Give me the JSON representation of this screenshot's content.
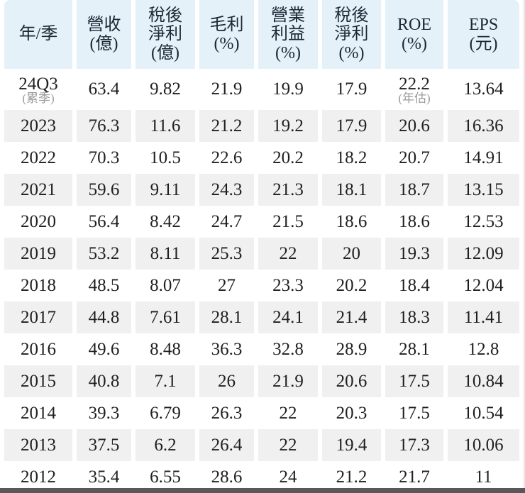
{
  "colors": {
    "header_bg": "#e4f1f9",
    "stripe_bg": "#f0f0f0",
    "text_main": "#1f1f1f",
    "text_header": "#1b2733",
    "text_note": "#9a9a9a",
    "bottom_bar": "#58585a"
  },
  "table": {
    "columns": [
      {
        "id": "year",
        "lines": [
          "年/季"
        ]
      },
      {
        "id": "revenue",
        "lines": [
          "營收",
          "(億)"
        ]
      },
      {
        "id": "net_income",
        "lines": [
          "稅後",
          "淨利",
          "(億)"
        ]
      },
      {
        "id": "gross_margin",
        "lines": [
          "毛利",
          "(%)"
        ]
      },
      {
        "id": "op_margin",
        "lines": [
          "營業",
          "利益",
          "(%)"
        ]
      },
      {
        "id": "net_margin",
        "lines": [
          "稅後",
          "淨利",
          "(%)"
        ]
      },
      {
        "id": "roe",
        "lines": [
          "ROE",
          "(%)"
        ]
      },
      {
        "id": "eps",
        "lines": [
          "EPS",
          "(元)"
        ]
      }
    ],
    "rows": [
      {
        "year": "24Q3",
        "year_note": "(累季)",
        "revenue": "63.4",
        "net_income": "9.82",
        "gross_margin": "21.9",
        "op_margin": "19.9",
        "net_margin": "17.9",
        "roe": "22.2",
        "roe_note": "(年估)",
        "eps": "13.64"
      },
      {
        "year": "2023",
        "revenue": "76.3",
        "net_income": "11.6",
        "gross_margin": "21.2",
        "op_margin": "19.2",
        "net_margin": "17.9",
        "roe": "20.6",
        "eps": "16.36"
      },
      {
        "year": "2022",
        "revenue": "70.3",
        "net_income": "10.5",
        "gross_margin": "22.6",
        "op_margin": "20.2",
        "net_margin": "18.2",
        "roe": "20.7",
        "eps": "14.91"
      },
      {
        "year": "2021",
        "revenue": "59.6",
        "net_income": "9.11",
        "gross_margin": "24.3",
        "op_margin": "21.3",
        "net_margin": "18.1",
        "roe": "18.7",
        "eps": "13.15"
      },
      {
        "year": "2020",
        "revenue": "56.4",
        "net_income": "8.42",
        "gross_margin": "24.7",
        "op_margin": "21.5",
        "net_margin": "18.6",
        "roe": "18.6",
        "eps": "12.53"
      },
      {
        "year": "2019",
        "revenue": "53.2",
        "net_income": "8.11",
        "gross_margin": "25.3",
        "op_margin": "22",
        "net_margin": "20",
        "roe": "19.3",
        "eps": "12.09"
      },
      {
        "year": "2018",
        "revenue": "48.5",
        "net_income": "8.07",
        "gross_margin": "27",
        "op_margin": "23.3",
        "net_margin": "20.2",
        "roe": "18.4",
        "eps": "12.04"
      },
      {
        "year": "2017",
        "revenue": "44.8",
        "net_income": "7.61",
        "gross_margin": "28.1",
        "op_margin": "24.1",
        "net_margin": "21.4",
        "roe": "18.3",
        "eps": "11.41"
      },
      {
        "year": "2016",
        "revenue": "49.6",
        "net_income": "8.48",
        "gross_margin": "36.3",
        "op_margin": "32.8",
        "net_margin": "28.9",
        "roe": "28.1",
        "eps": "12.8"
      },
      {
        "year": "2015",
        "revenue": "40.8",
        "net_income": "7.1",
        "gross_margin": "26",
        "op_margin": "21.9",
        "net_margin": "20.6",
        "roe": "17.5",
        "eps": "10.84"
      },
      {
        "year": "2014",
        "revenue": "39.3",
        "net_income": "6.79",
        "gross_margin": "26.3",
        "op_margin": "22",
        "net_margin": "20.3",
        "roe": "17.5",
        "eps": "10.54"
      },
      {
        "year": "2013",
        "revenue": "37.5",
        "net_income": "6.2",
        "gross_margin": "26.4",
        "op_margin": "22",
        "net_margin": "19.4",
        "roe": "17.3",
        "eps": "10.06"
      },
      {
        "year": "2012",
        "revenue": "35.4",
        "net_income": "6.55",
        "gross_margin": "28.6",
        "op_margin": "24",
        "net_margin": "21.2",
        "roe": "21.7",
        "eps": "11"
      }
    ]
  }
}
